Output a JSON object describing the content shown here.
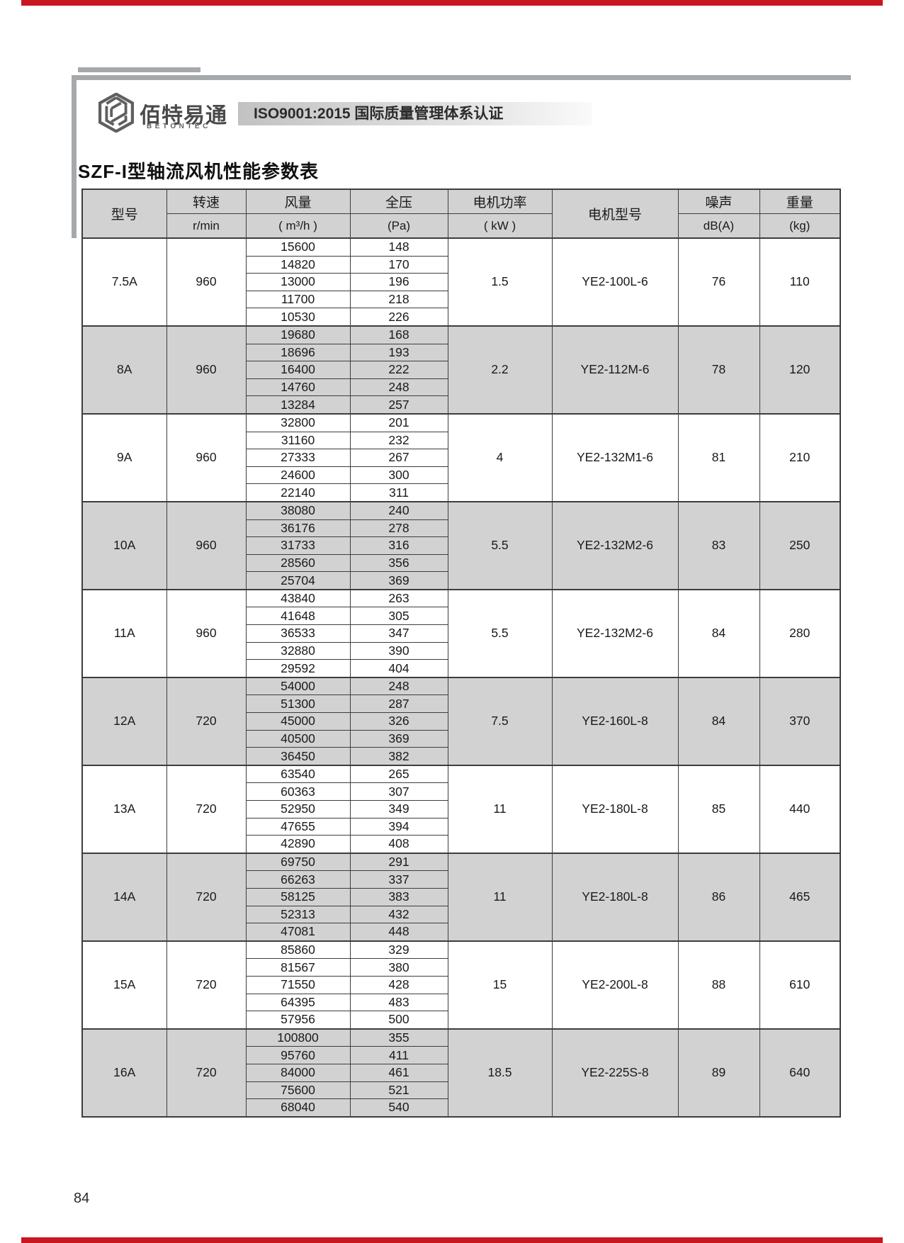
{
  "header": {
    "logo_text": "佰特易通",
    "logo_subtext": "BETONTEC",
    "banner_text": "ISO9001:2015 国际质量管理体系认证"
  },
  "title": "SZF-I型轴流风机性能参数表",
  "table": {
    "headers": {
      "model": "型号",
      "speed": "转速",
      "speed_unit": "r/min",
      "flow": "风量",
      "flow_unit": "( m³/h )",
      "pressure": "全压",
      "pressure_unit": "(Pa)",
      "power": "电机功率",
      "power_unit": "( kW )",
      "motor": "电机型号",
      "noise": "噪声",
      "noise_unit": "dB(A)",
      "weight": "重量",
      "weight_unit": "(kg)"
    },
    "groups": [
      {
        "model": "7.5A",
        "speed": "960",
        "power": "1.5",
        "motor": "YE2-100L-6",
        "noise": "76",
        "weight": "110",
        "shaded": false,
        "points": [
          [
            "15600",
            "148"
          ],
          [
            "14820",
            "170"
          ],
          [
            "13000",
            "196"
          ],
          [
            "11700",
            "218"
          ],
          [
            "10530",
            "226"
          ]
        ]
      },
      {
        "model": "8A",
        "speed": "960",
        "power": "2.2",
        "motor": "YE2-112M-6",
        "noise": "78",
        "weight": "120",
        "shaded": true,
        "points": [
          [
            "19680",
            "168"
          ],
          [
            "18696",
            "193"
          ],
          [
            "16400",
            "222"
          ],
          [
            "14760",
            "248"
          ],
          [
            "13284",
            "257"
          ]
        ]
      },
      {
        "model": "9A",
        "speed": "960",
        "power": "4",
        "motor": "YE2-132M1-6",
        "noise": "81",
        "weight": "210",
        "shaded": false,
        "points": [
          [
            "32800",
            "201"
          ],
          [
            "31160",
            "232"
          ],
          [
            "27333",
            "267"
          ],
          [
            "24600",
            "300"
          ],
          [
            "22140",
            "311"
          ]
        ]
      },
      {
        "model": "10A",
        "speed": "960",
        "power": "5.5",
        "motor": "YE2-132M2-6",
        "noise": "83",
        "weight": "250",
        "shaded": true,
        "points": [
          [
            "38080",
            "240"
          ],
          [
            "36176",
            "278"
          ],
          [
            "31733",
            "316"
          ],
          [
            "28560",
            "356"
          ],
          [
            "25704",
            "369"
          ]
        ]
      },
      {
        "model": "11A",
        "speed": "960",
        "power": "5.5",
        "motor": "YE2-132M2-6",
        "noise": "84",
        "weight": "280",
        "shaded": false,
        "points": [
          [
            "43840",
            "263"
          ],
          [
            "41648",
            "305"
          ],
          [
            "36533",
            "347"
          ],
          [
            "32880",
            "390"
          ],
          [
            "29592",
            "404"
          ]
        ]
      },
      {
        "model": "12A",
        "speed": "720",
        "power": "7.5",
        "motor": "YE2-160L-8",
        "noise": "84",
        "weight": "370",
        "shaded": true,
        "points": [
          [
            "54000",
            "248"
          ],
          [
            "51300",
            "287"
          ],
          [
            "45000",
            "326"
          ],
          [
            "40500",
            "369"
          ],
          [
            "36450",
            "382"
          ]
        ]
      },
      {
        "model": "13A",
        "speed": "720",
        "power": "11",
        "motor": "YE2-180L-8",
        "noise": "85",
        "weight": "440",
        "shaded": false,
        "points": [
          [
            "63540",
            "265"
          ],
          [
            "60363",
            "307"
          ],
          [
            "52950",
            "349"
          ],
          [
            "47655",
            "394"
          ],
          [
            "42890",
            "408"
          ]
        ]
      },
      {
        "model": "14A",
        "speed": "720",
        "power": "11",
        "motor": "YE2-180L-8",
        "noise": "86",
        "weight": "465",
        "shaded": true,
        "points": [
          [
            "69750",
            "291"
          ],
          [
            "66263",
            "337"
          ],
          [
            "58125",
            "383"
          ],
          [
            "52313",
            "432"
          ],
          [
            "47081",
            "448"
          ]
        ]
      },
      {
        "model": "15A",
        "speed": "720",
        "power": "15",
        "motor": "YE2-200L-8",
        "noise": "88",
        "weight": "610",
        "shaded": false,
        "points": [
          [
            "85860",
            "329"
          ],
          [
            "81567",
            "380"
          ],
          [
            "71550",
            "428"
          ],
          [
            "64395",
            "483"
          ],
          [
            "57956",
            "500"
          ]
        ]
      },
      {
        "model": "16A",
        "speed": "720",
        "power": "18.5",
        "motor": "YE2-225S-8",
        "noise": "89",
        "weight": "640",
        "shaded": true,
        "points": [
          [
            "100800",
            "355"
          ],
          [
            "95760",
            "411"
          ],
          [
            "84000",
            "461"
          ],
          [
            "75600",
            "521"
          ],
          [
            "68040",
            "540"
          ]
        ]
      }
    ]
  },
  "page_number": "84",
  "colors": {
    "accent_red": "#c8171e",
    "frame_gray": "#a6a9ab",
    "table_shade": "#d2d2d2"
  }
}
